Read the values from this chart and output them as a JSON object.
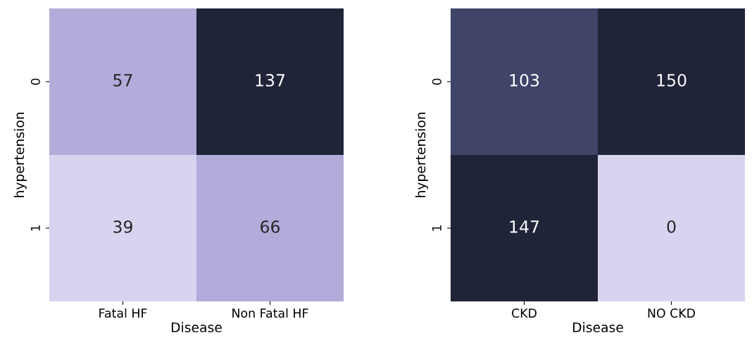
{
  "chart_data": [
    {
      "type": "heatmap",
      "xlabel": "Disease",
      "ylabel": "hypertension",
      "categories": [
        "Fatal HF",
        "Non Fatal HF"
      ],
      "y_categories": [
        "0",
        "1"
      ],
      "cells": [
        [
          57,
          137
        ],
        [
          39,
          66
        ]
      ],
      "data_labels": true,
      "colors": [
        [
          "#b1acda",
          "#1f2438"
        ],
        [
          "#d8d4f0",
          "#b1acda"
        ]
      ]
    },
    {
      "type": "heatmap",
      "xlabel": "Disease",
      "ylabel": "hypertension",
      "categories": [
        "CKD",
        "NO CKD"
      ],
      "y_categories": [
        "0",
        "1"
      ],
      "cells": [
        [
          103,
          150
        ],
        [
          147,
          0
        ]
      ],
      "data_labels": true,
      "colors": [
        [
          "#3f4468",
          "#1f2438"
        ],
        [
          "#1f2438",
          "#d8d4f0"
        ]
      ]
    }
  ]
}
